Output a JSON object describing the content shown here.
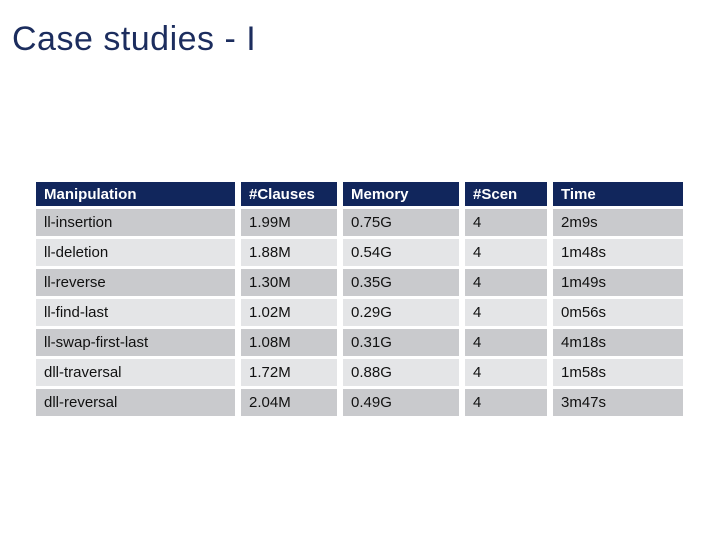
{
  "slide": {
    "title": "Case studies - I",
    "accent_color": "#1c2d5e",
    "header_bg": "#11265c",
    "row_odd_bg": "#c9cacd",
    "row_even_bg": "#e4e5e7"
  },
  "table": {
    "columns": [
      "Manipulation",
      "#Clauses",
      "Memory",
      "#Scen",
      "Time"
    ],
    "rows": [
      [
        "ll-insertion",
        "1.99M",
        "0.75G",
        "4",
        "2m9s"
      ],
      [
        "ll-deletion",
        "1.88M",
        "0.54G",
        "4",
        "1m48s"
      ],
      [
        "ll-reverse",
        "1.30M",
        "0.35G",
        "4",
        "1m49s"
      ],
      [
        "ll-find-last",
        "1.02M",
        "0.29G",
        "4",
        "0m56s"
      ],
      [
        "ll-swap-first-last",
        "1.08M",
        "0.31G",
        "4",
        "4m18s"
      ],
      [
        "dll-traversal",
        "1.72M",
        "0.88G",
        "4",
        "1m58s"
      ],
      [
        "dll-reversal",
        "2.04M",
        "0.49G",
        "4",
        "3m47s"
      ]
    ]
  }
}
